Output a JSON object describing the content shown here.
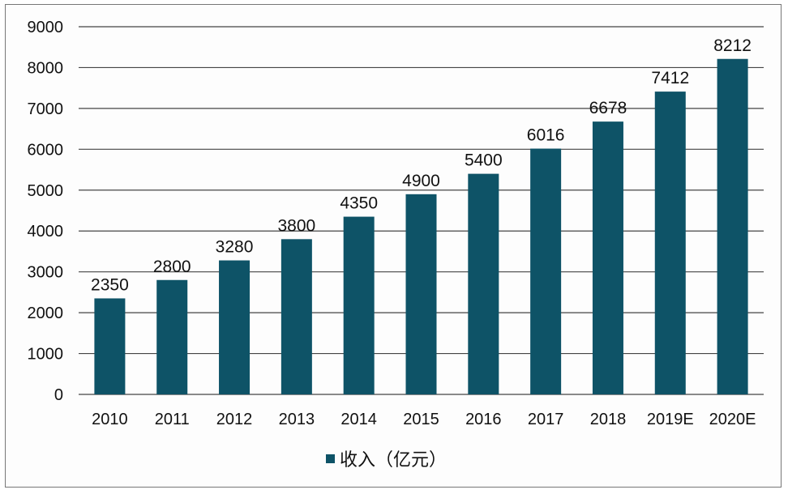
{
  "chart_data": {
    "type": "bar",
    "title": "",
    "xlabel": "",
    "ylabel": "",
    "categories": [
      "2010",
      "2011",
      "2012",
      "2013",
      "2014",
      "2015",
      "2016",
      "2017",
      "2018",
      "2019E",
      "2020E"
    ],
    "series": [
      {
        "name": "收入（亿元）",
        "values": [
          2350,
          2800,
          3280,
          3800,
          4350,
          4900,
          5400,
          6016,
          6678,
          7412,
          8212
        ],
        "color": "#0e5367"
      }
    ],
    "ylim": [
      0,
      9000
    ],
    "yticks": [
      0,
      1000,
      2000,
      3000,
      4000,
      5000,
      6000,
      7000,
      8000,
      9000
    ],
    "grid": true,
    "legend_position": "bottom",
    "data_labels": true
  }
}
